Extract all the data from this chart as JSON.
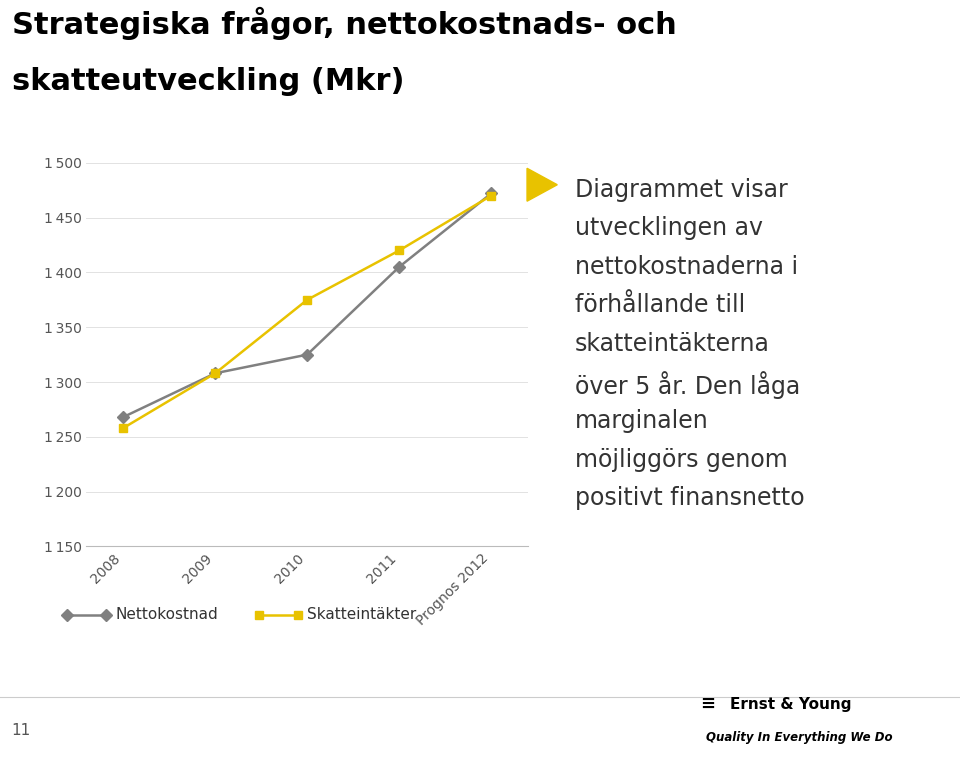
{
  "title_line1": "Strategiska frågor, nettokostnads- och",
  "title_line2": "skatteutveckling (Mkr)",
  "title_color": "#000000",
  "title_fontsize": 22,
  "background_color": "#ffffff",
  "x_labels": [
    "2008",
    "2009",
    "2010",
    "2011",
    "Prognos 2012"
  ],
  "nettokostnad": [
    1268,
    1308,
    1325,
    1405,
    1472
  ],
  "skatteintakter": [
    1258,
    1308,
    1375,
    1420,
    1470
  ],
  "line_color_netto": "#808080",
  "line_color_skatt": "#E8C200",
  "marker_color_netto": "#808080",
  "marker_color_skatt": "#E8C200",
  "ylim_min": 1150,
  "ylim_max": 1510,
  "yticks": [
    1150,
    1200,
    1250,
    1300,
    1350,
    1400,
    1450,
    1500
  ],
  "legend_netto": "Nettokostnad",
  "legend_skatt": "Skatteintäkter",
  "bullet_color": "#E8C200",
  "bullet_text_lines": [
    "Diagrammet visar",
    "utvecklingen av",
    "nettokostnaderna i",
    "förhållande till",
    "skatteintäkterna",
    "över 5 år. Den låga",
    "marginalen",
    "möjliggörs genom",
    "positivt finansnetto"
  ],
  "footer_number": "11",
  "title_bar_color": "#E8C200"
}
